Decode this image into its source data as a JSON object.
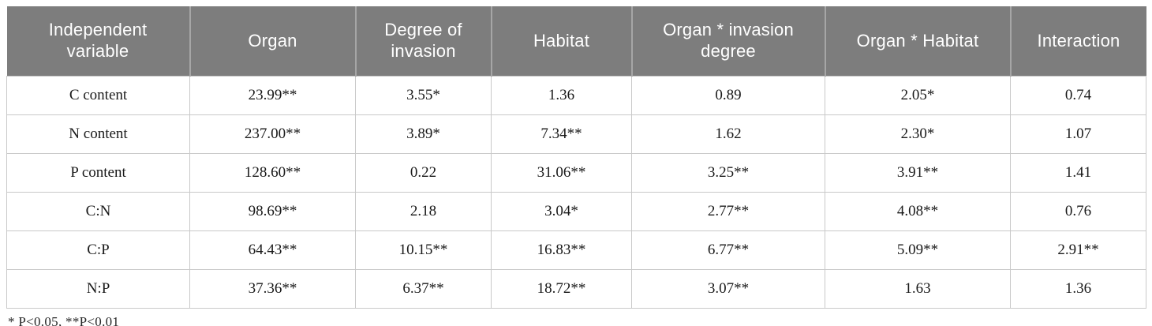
{
  "colors": {
    "header_bg": "#7d7d7d",
    "header_text": "#ffffff",
    "header_divider": "#a6a6a6",
    "body_border": "#c9c9c9",
    "body_text": "#1a1a1a",
    "page_bg": "#ffffff"
  },
  "table": {
    "columns": [
      "Independent variable",
      "Organ",
      "Degree of invasion",
      "Habitat",
      "Organ * invasion degree",
      "Organ * Habitat",
      "Interaction"
    ],
    "rows": [
      {
        "label": "C content",
        "values": [
          "23.99**",
          "3.55*",
          "1.36",
          "0.89",
          "2.05*",
          "0.74"
        ]
      },
      {
        "label": "N content",
        "values": [
          "237.00**",
          "3.89*",
          "7.34**",
          "1.62",
          "2.30*",
          "1.07"
        ]
      },
      {
        "label": "P content",
        "values": [
          "128.60**",
          "0.22",
          "31.06**",
          "3.25**",
          "3.91**",
          "1.41"
        ]
      },
      {
        "label": "C:N",
        "values": [
          "98.69**",
          "2.18",
          "3.04*",
          "2.77**",
          "4.08**",
          "0.76"
        ]
      },
      {
        "label": "C:P",
        "values": [
          "64.43**",
          "10.15**",
          "16.83**",
          "6.77**",
          "5.09**",
          "2.91**"
        ]
      },
      {
        "label": "N:P",
        "values": [
          "37.36**",
          "6.37**",
          "18.72**",
          "3.07**",
          "1.63",
          "1.36"
        ]
      }
    ],
    "footnote": "* P<0.05, **P<0.01"
  }
}
